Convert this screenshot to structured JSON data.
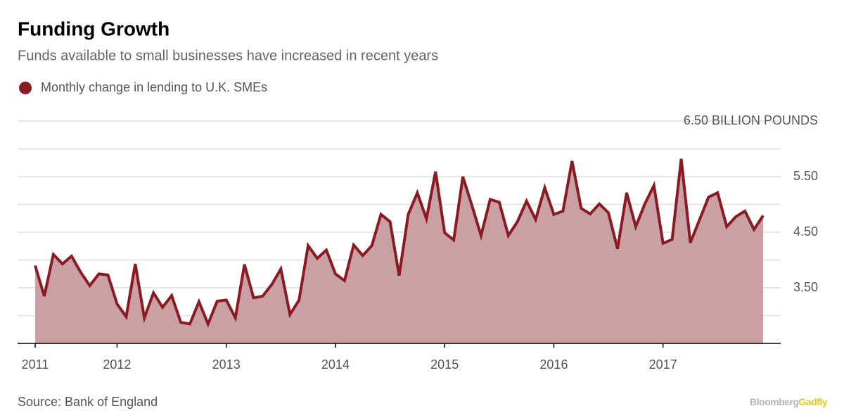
{
  "chart_data": {
    "type": "area",
    "title": "Funding Growth",
    "subtitle": "Funds available to small businesses have increased in recent years",
    "source": "Source: Bank of England",
    "brand": [
      "Bloomberg",
      "Gadfly"
    ],
    "categories": [
      "2011",
      null,
      null,
      null,
      null,
      null,
      null,
      null,
      null,
      "2012",
      null,
      null,
      null,
      null,
      null,
      null,
      null,
      null,
      null,
      null,
      null,
      "2013",
      null,
      null,
      null,
      null,
      null,
      null,
      null,
      null,
      null,
      null,
      null,
      "2014",
      null,
      null,
      null,
      null,
      null,
      null,
      null,
      null,
      null,
      null,
      null,
      "2015",
      null,
      null,
      null,
      null,
      null,
      null,
      null,
      null,
      null,
      null,
      null,
      "2016",
      null,
      null,
      null,
      null,
      null,
      null,
      null,
      null,
      null,
      null,
      null,
      "2017",
      null,
      null,
      null,
      null,
      null,
      null,
      null,
      null,
      null,
      null,
      null
    ],
    "series": [
      {
        "name": "Monthly change in lending to U.K. SMEs",
        "color": "#8b1a22",
        "area_color": "#c9a1a5",
        "values": [
          3.9,
          3.35,
          4.1,
          3.93,
          4.07,
          3.78,
          3.54,
          3.75,
          3.73,
          3.21,
          2.98,
          3.93,
          2.96,
          3.41,
          3.15,
          3.36,
          2.88,
          2.85,
          3.25,
          2.85,
          3.26,
          3.28,
          2.96,
          3.92,
          3.32,
          3.35,
          3.56,
          3.84,
          3.02,
          3.28,
          4.26,
          4.03,
          4.18,
          3.75,
          3.63,
          4.27,
          4.08,
          4.26,
          4.82,
          4.69,
          3.72,
          4.82,
          5.21,
          4.74,
          5.59,
          4.49,
          4.36,
          5.5,
          4.98,
          4.44,
          5.09,
          5.04,
          4.44,
          4.69,
          5.06,
          4.73,
          5.3,
          4.82,
          4.88,
          5.78,
          4.93,
          4.83,
          5.01,
          4.85,
          4.2,
          5.21,
          4.6,
          5.01,
          5.34,
          4.3,
          4.37,
          5.82,
          4.31,
          4.72,
          5.13,
          5.21,
          4.6,
          4.78,
          4.88,
          4.55,
          4.8
        ]
      }
    ],
    "ylim": [
      2.5,
      6.5
    ],
    "yticks": [
      {
        "value": 3,
        "label": null
      },
      {
        "value": 3.5,
        "label": "3.50"
      },
      {
        "value": 4,
        "label": null
      },
      {
        "value": 4.5,
        "label": "4.50"
      },
      {
        "value": 5,
        "label": null
      },
      {
        "value": 5.5,
        "label": "5.50"
      },
      {
        "value": 6,
        "label": null
      },
      {
        "value": 6.5,
        "label": "6.50 BILLION POUNDS"
      }
    ],
    "grid": true
  }
}
